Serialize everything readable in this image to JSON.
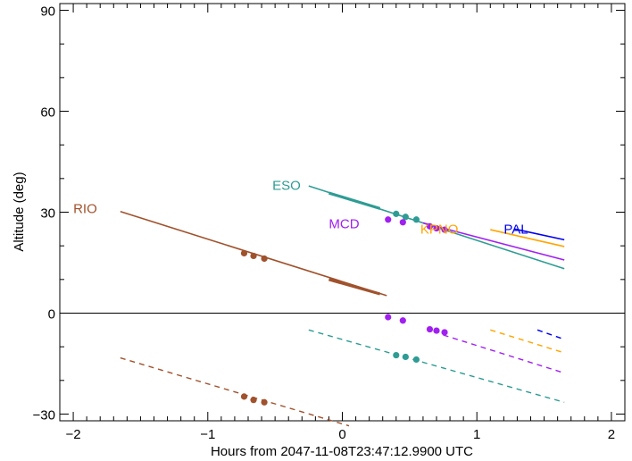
{
  "chart_data": {
    "type": "line",
    "xlabel": "Hours from 2047-11-08T23:47:12.9900 UTC",
    "ylabel": "Altitude (deg)",
    "xlim": [
      -2.1,
      2.1
    ],
    "ylim": [
      -32,
      92
    ],
    "xticks": [
      -2,
      -1,
      0,
      1,
      2
    ],
    "yticks": [
      -30,
      0,
      30,
      60,
      90
    ],
    "zero_line": true,
    "grid": false,
    "series": [
      {
        "name": "RIO",
        "color": "#a0522d",
        "label_pos": [
          -2.0,
          31
        ],
        "solid": [
          [
            -1.65,
            30.2
          ],
          [
            0.33,
            5.2
          ]
        ],
        "thick": [
          [
            -0.1,
            10.0
          ],
          [
            0.28,
            5.7
          ]
        ],
        "dashed": [
          [
            -1.65,
            -13.3
          ],
          [
            0.05,
            -33.5
          ]
        ],
        "points": [
          [
            -0.73,
            17.8
          ],
          [
            -0.66,
            17.0
          ],
          [
            -0.58,
            16.2
          ],
          [
            -0.73,
            -24.8
          ],
          [
            -0.66,
            -25.8
          ],
          [
            -0.58,
            -26.5
          ]
        ]
      },
      {
        "name": "ESO",
        "color": "#2e9c94",
        "label_pos": [
          -0.52,
          38
        ],
        "solid": [
          [
            -0.25,
            37.8
          ],
          [
            1.65,
            13.2
          ]
        ],
        "thick": [
          [
            -0.1,
            35.7
          ],
          [
            0.28,
            31.1
          ]
        ],
        "dashed": [
          [
            -0.25,
            -5.0
          ],
          [
            1.65,
            -26.5
          ]
        ],
        "points": [
          [
            0.4,
            29.5
          ],
          [
            0.47,
            28.6
          ],
          [
            0.55,
            27.8
          ],
          [
            0.4,
            -12.5
          ],
          [
            0.47,
            -13.0
          ],
          [
            0.55,
            -13.8
          ]
        ]
      },
      {
        "name": "MCD",
        "color": "#a020f0",
        "label_pos": [
          -0.1,
          26.5
        ],
        "solid": [
          [
            0.6,
            26.8
          ],
          [
            1.65,
            15.8
          ]
        ],
        "dashed": [
          [
            0.75,
            -6.5
          ],
          [
            1.65,
            -17.8
          ]
        ],
        "points": [
          [
            0.34,
            27.8
          ],
          [
            0.45,
            27.0
          ],
          [
            0.65,
            25.8
          ],
          [
            0.7,
            25.2
          ],
          [
            0.76,
            24.8
          ],
          [
            0.34,
            -1.2
          ],
          [
            0.45,
            -2.2
          ],
          [
            0.65,
            -4.8
          ],
          [
            0.7,
            -5.2
          ],
          [
            0.76,
            -5.7
          ]
        ]
      },
      {
        "name": "KPNO",
        "color": "#ffa500",
        "label_pos": [
          0.58,
          25
        ],
        "solid": [
          [
            1.1,
            24.8
          ],
          [
            1.65,
            19.8
          ]
        ],
        "dashed": [
          [
            1.1,
            -5.0
          ],
          [
            1.65,
            -11.8
          ]
        ],
        "points": []
      },
      {
        "name": "PAL",
        "color": "#0000ee",
        "label_pos": [
          1.2,
          25
        ],
        "solid": [
          [
            1.28,
            25.0
          ],
          [
            1.65,
            21.8
          ]
        ],
        "dashed": [
          [
            1.45,
            -5.0
          ],
          [
            1.65,
            -7.8
          ]
        ],
        "points": []
      }
    ]
  }
}
